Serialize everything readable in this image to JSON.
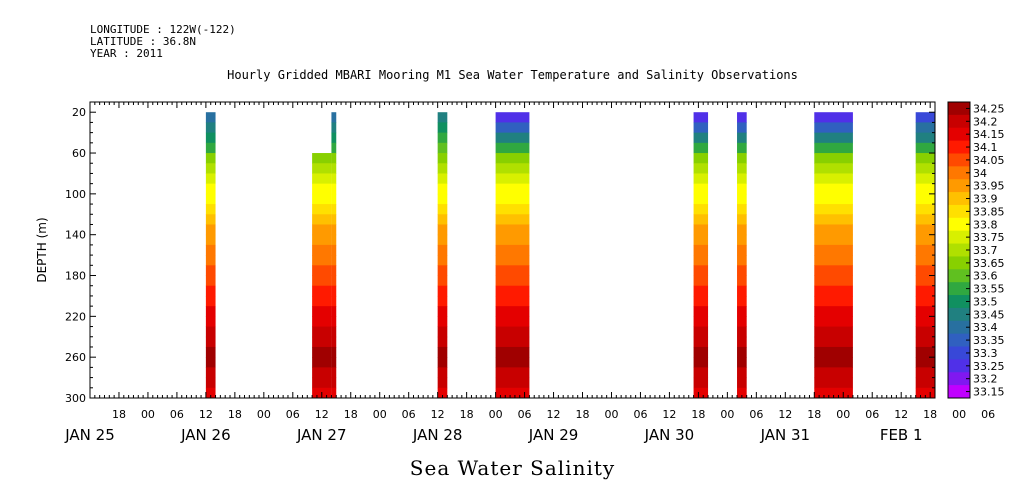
{
  "header": {
    "longitude": "LONGITUDE : 122W(-122)",
    "latitude": "LATITUDE : 36.8N",
    "year": "YEAR : 2011"
  },
  "chart_data": {
    "type": "heatmap",
    "title": "Hourly Gridded MBARI Mooring M1 Sea Water Temperature and Salinity Observations",
    "subtitle": "",
    "xlabel": "Sea Water Salinity",
    "ylabel": "DEPTH (m)",
    "x_axis": {
      "range_hours_from_jan25_00": [
        12,
        187
      ],
      "hour_ticks": [
        "18",
        "00",
        "06",
        "12",
        "18",
        "00",
        "06",
        "12",
        "18",
        "00",
        "06",
        "12",
        "18",
        "00",
        "06",
        "12",
        "18",
        "00",
        "06",
        "12",
        "18",
        "00",
        "06",
        "12",
        "18",
        "00",
        "06",
        "12",
        "18",
        "00",
        "06",
        "12",
        "18"
      ],
      "date_labels": [
        "JAN 25",
        "JAN 26",
        "JAN 27",
        "JAN 28",
        "JAN 29",
        "JAN 30",
        "JAN 31",
        "FEB  1"
      ]
    },
    "y_axis": {
      "range": [
        300,
        10
      ],
      "inverted": true,
      "ticks": [
        "20",
        "60",
        "100",
        "140",
        "180",
        "220",
        "260",
        "300"
      ]
    },
    "colorbar": {
      "levels": [
        "34.25",
        "34.2",
        "34.15",
        "34.1",
        "34.05",
        "34",
        "33.95",
        "33.9",
        "33.85",
        "33.8",
        "33.75",
        "33.7",
        "33.65",
        "33.6",
        "33.55",
        "33.5",
        "33.45",
        "33.4",
        "33.35",
        "33.3",
        "33.25",
        "33.2",
        "33.15"
      ],
      "colors": [
        "#a00000",
        "#c80000",
        "#e40000",
        "#ff1a00",
        "#ff4a00",
        "#ff7800",
        "#ff9a00",
        "#ffc000",
        "#ffe000",
        "#ffff00",
        "#d8f000",
        "#b0e000",
        "#88d000",
        "#60c020",
        "#30a840",
        "#109060",
        "#208080",
        "#2870a0",
        "#3060c0",
        "#3848d8",
        "#5030e8",
        "#8018f0",
        "#c000ff"
      ]
    },
    "profile": [
      {
        "depth": 20,
        "salinity": 33.45
      },
      {
        "depth": 40,
        "salinity": 33.55
      },
      {
        "depth": 60,
        "salinity": 33.6
      },
      {
        "depth": 80,
        "salinity": 33.7
      },
      {
        "depth": 100,
        "salinity": 33.8
      },
      {
        "depth": 120,
        "salinity": 33.85
      },
      {
        "depth": 140,
        "salinity": 33.95
      },
      {
        "depth": 160,
        "salinity": 34.0
      },
      {
        "depth": 180,
        "salinity": 34.05
      },
      {
        "depth": 200,
        "salinity": 34.1
      },
      {
        "depth": 220,
        "salinity": 34.15
      },
      {
        "depth": 240,
        "salinity": 34.2
      },
      {
        "depth": 260,
        "salinity": 34.25
      },
      {
        "depth": 280,
        "salinity": 34.2
      },
      {
        "depth": 300,
        "salinity": 34.15
      }
    ],
    "segments": [
      {
        "start_hour": 36,
        "end_hour": 38,
        "top_depth": 20,
        "surface": 33.4
      },
      {
        "start_hour": 58,
        "end_hour": 62,
        "top_depth": 60,
        "surface": 33.5
      },
      {
        "start_hour": 62,
        "end_hour": 63,
        "top_depth": 20,
        "surface": 33.35
      },
      {
        "start_hour": 84,
        "end_hour": 86,
        "top_depth": 20,
        "surface": 33.45
      },
      {
        "start_hour": 96,
        "end_hour": 103,
        "top_depth": 20,
        "surface": 33.2
      },
      {
        "start_hour": 137,
        "end_hour": 140,
        "top_depth": 20,
        "surface": 33.2
      },
      {
        "start_hour": 146,
        "end_hour": 148,
        "top_depth": 20,
        "surface": 33.2
      },
      {
        "start_hour": 162,
        "end_hour": 170,
        "top_depth": 20,
        "surface": 33.2
      },
      {
        "start_hour": 183,
        "end_hour": 187,
        "top_depth": 20,
        "surface": 33.25
      }
    ]
  }
}
